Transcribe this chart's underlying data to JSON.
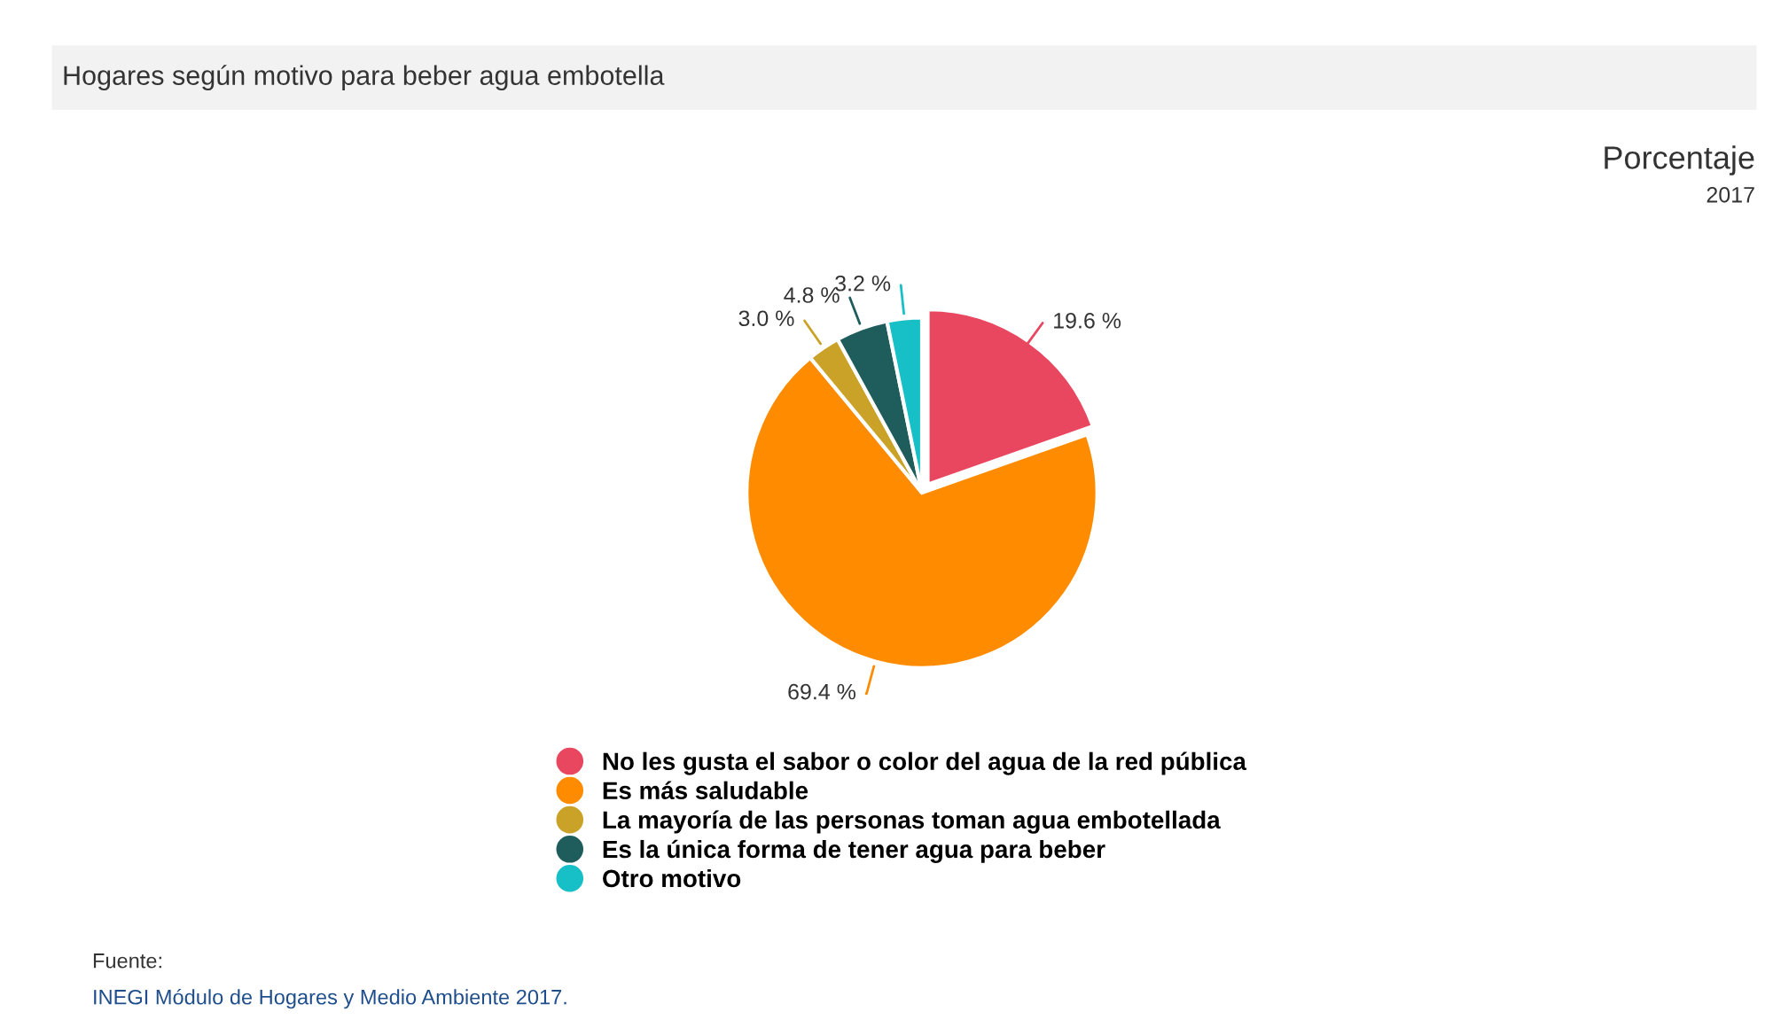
{
  "chart_data": {
    "type": "pie",
    "title": "Hogares según motivo para beber agua embotella",
    "subtitle": "Porcentaje\n2017",
    "categories": [
      "No les gusta el sabor o color del agua de la red pública",
      "Es más saludable",
      "La mayoría de las personas toman agua embotellada",
      "Es la única forma de tener agua para beber",
      "Otro motivo"
    ],
    "values": [
      19.6,
      69.4,
      3.0,
      4.8,
      3.2
    ],
    "colors": [
      "#e8475f",
      "#ff8c00",
      "#c9a227",
      "#1f5c5c",
      "#17bfc7"
    ],
    "value_labels": [
      "19.6 %",
      "69.4 %",
      "3.0 %",
      "4.8 %",
      "3.2 %"
    ],
    "legend": "bottom",
    "annotations": [
      "Fuente:",
      "INEGI Módulo de Hogares y Medio Ambiente 2017."
    ]
  }
}
